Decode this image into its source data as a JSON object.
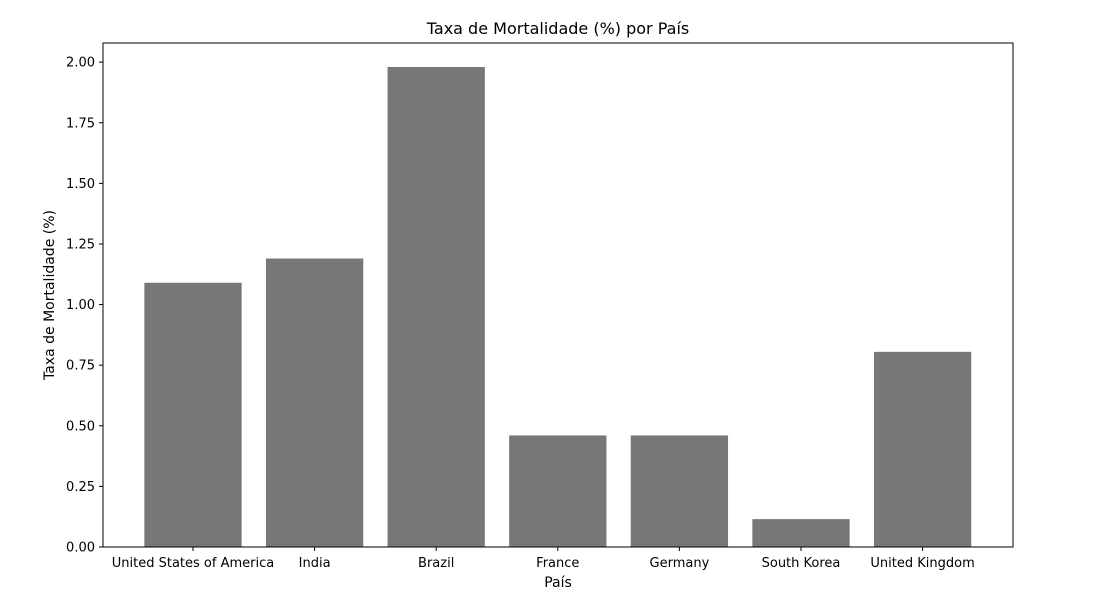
{
  "chart_data": {
    "type": "bar",
    "title": "Taxa de Mortalidade (%) por País",
    "xlabel": "País",
    "ylabel": "Taxa de Mortalidade (%)",
    "categories": [
      "United States of America",
      "India",
      "Brazil",
      "France",
      "Germany",
      "South Korea",
      "United Kingdom"
    ],
    "values": [
      1.09,
      1.19,
      1.98,
      0.46,
      0.46,
      0.115,
      0.805
    ],
    "ylim": [
      0,
      2.079
    ],
    "yticks": [
      0.0,
      0.25,
      0.5,
      0.75,
      1.0,
      1.25,
      1.5,
      1.75,
      2.0
    ],
    "ytick_labels": [
      "0.00",
      "0.25",
      "0.50",
      "0.75",
      "1.00",
      "1.25",
      "1.50",
      "1.75",
      "2.00"
    ],
    "bar_color": "#777777",
    "grid": false,
    "legend": "none"
  }
}
